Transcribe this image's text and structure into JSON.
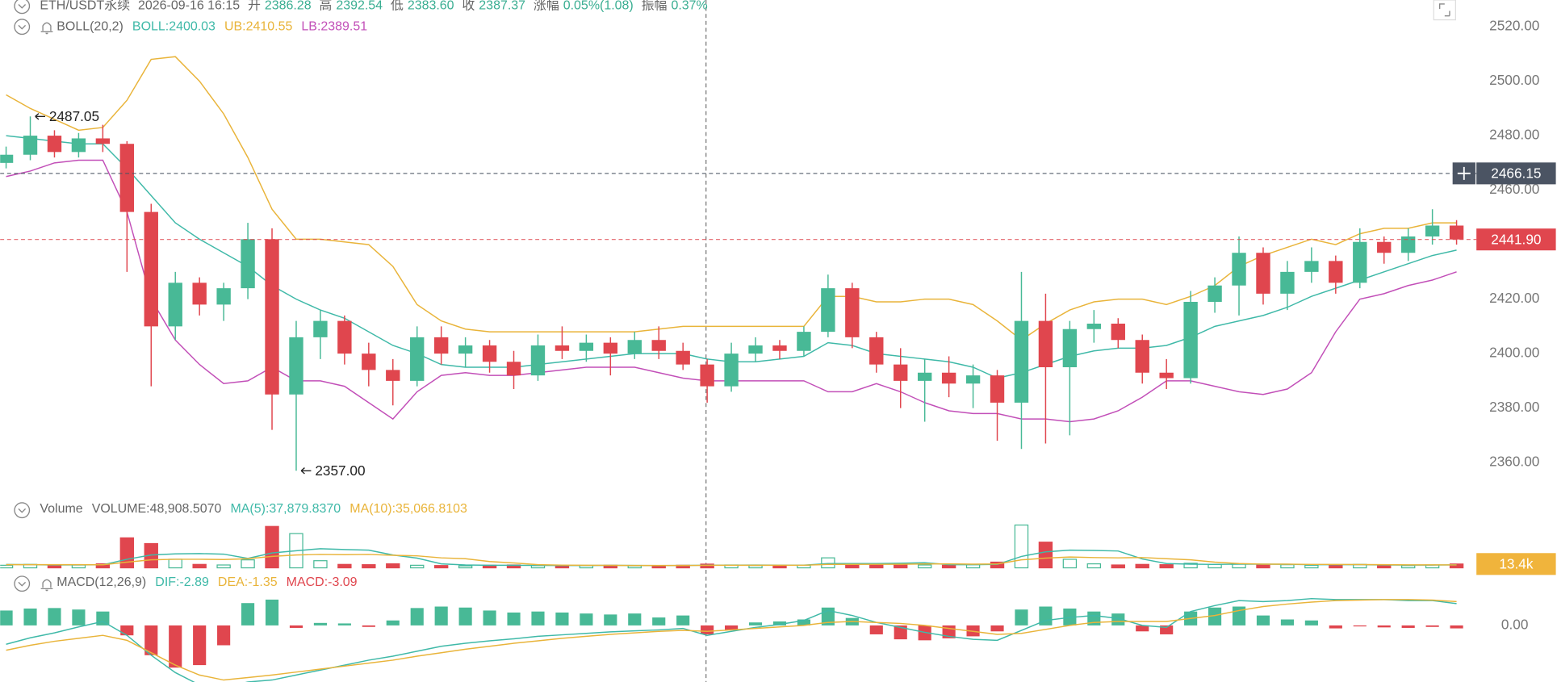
{
  "chart_data": [
    {
      "type": "candlestick",
      "header": {
        "symbol": "ETH/USDT永续",
        "time": "2026-09-16 16:15",
        "fields": [
          {
            "label": "开",
            "value": 2386.28
          },
          {
            "label": "高",
            "value": 2392.54
          },
          {
            "label": "低",
            "value": {
              "value": 2383.6,
              "label": "2383.60"
            }
          },
          {
            "label": "收",
            "value": 2387.37
          },
          {
            "label": "涨幅",
            "value": "0.05%(1.08)"
          },
          {
            "label": "振幅",
            "value": "0.37%"
          }
        ]
      },
      "title": "BOLL(20,2)",
      "up_color": "#48b996",
      "down_color": "#e0464e",
      "open": [
        2470,
        2473,
        2480,
        2474,
        2479,
        2477,
        2452,
        2410,
        2426,
        2418,
        2424,
        2442,
        2385,
        2406,
        2412,
        2400,
        2394,
        2390,
        2406,
        2400,
        2403,
        2397,
        2392,
        2403,
        2401,
        2404,
        2400,
        2405,
        2401,
        2396,
        2388,
        2400,
        2403,
        2401,
        2408,
        2424,
        2406,
        2396,
        2390,
        2393,
        2389,
        2392,
        2382,
        2412,
        2395,
        2409,
        2411,
        2405,
        2393,
        2391,
        2419,
        2425,
        2437,
        2422,
        2430,
        2434,
        2426,
        2441,
        2437,
        2443,
        2447
      ],
      "high": [
        2476,
        2487.05,
        2482,
        2481,
        2484,
        2478,
        2455,
        2430,
        2428,
        2426,
        2448,
        2446,
        2412,
        2416,
        2414,
        2404,
        2398,
        2410,
        2410,
        2406,
        2405,
        2401,
        2407,
        2410,
        2407,
        2406,
        2408,
        2410,
        2404,
        2398,
        2404,
        2406,
        2405,
        2410,
        2429,
        2426,
        2408,
        2402,
        2398,
        2399,
        2396,
        2394,
        2430,
        2422,
        2412,
        2416,
        2413,
        2407,
        2398,
        2423,
        2428,
        2443,
        2439,
        2434,
        2439,
        2436,
        2446,
        2443,
        2446,
        2453,
        2449
      ],
      "low": [
        2468,
        2471,
        2472,
        2472,
        2474,
        2430,
        2388,
        2405,
        2414,
        2412,
        2420,
        2372,
        2357,
        2398,
        2396,
        2388,
        2381,
        2388,
        2396,
        2395,
        2393,
        2387,
        2390,
        2398,
        2397,
        2392,
        2398,
        2398,
        2394,
        2382,
        2386,
        2397,
        2398,
        2399,
        2406,
        2402,
        2393,
        2380,
        2375,
        2384,
        2380,
        2368,
        2365,
        2367,
        2370,
        2404,
        2402,
        2389,
        2387,
        2389,
        2415,
        2414,
        2418,
        2416,
        2426,
        2422,
        2424,
        2433,
        2434,
        2440,
        2440
      ],
      "close": [
        2473,
        2480,
        2474,
        2479,
        2477,
        2452,
        2410,
        2426,
        2418,
        2424,
        2442,
        2385,
        2406,
        2412,
        2400,
        2394,
        2390,
        2406,
        2400,
        2403,
        2397,
        2392,
        2403,
        2401,
        2404,
        2400,
        2405,
        2401,
        2396,
        2388,
        2400,
        2403,
        2401,
        2408,
        2424,
        2406,
        2396,
        2390,
        2393,
        2389,
        2392,
        2382,
        2412,
        2395,
        2409,
        2411,
        2405,
        2393,
        2391,
        2419,
        2425,
        2437,
        2422,
        2430,
        2434,
        2426,
        2441,
        2437,
        2443,
        2447,
        2441.9
      ],
      "series": [
        {
          "name": "BOLL:2400.03",
          "color": "#3fb9a8",
          "values": [
            2480,
            2479,
            2478,
            2477,
            2477,
            2468,
            2458,
            2448,
            2442,
            2437,
            2432,
            2425,
            2420,
            2416,
            2413,
            2408,
            2403,
            2400,
            2396,
            2395,
            2395,
            2395,
            2396,
            2397,
            2398,
            2399,
            2400,
            2400,
            2400,
            2398,
            2397,
            2397,
            2398,
            2399,
            2404,
            2403,
            2400,
            2399,
            2398,
            2397,
            2395,
            2391,
            2393,
            2396,
            2399,
            2401,
            2402,
            2402,
            2403,
            2406,
            2410,
            2412,
            2414,
            2417,
            2421,
            2424,
            2427,
            2430,
            2433,
            2436,
            2438
          ]
        },
        {
          "name": "UB:2410.55",
          "color": "#e9b43a",
          "values": [
            2495,
            2490,
            2486,
            2482,
            2483,
            2493,
            2508,
            2509,
            2500,
            2488,
            2472,
            2453,
            2442,
            2442,
            2441,
            2440,
            2432,
            2418,
            2412,
            2409,
            2408,
            2408,
            2408,
            2408,
            2408,
            2408,
            2408,
            2409,
            2410,
            2410,
            2410,
            2410,
            2410,
            2410,
            2421,
            2421,
            2419,
            2419,
            2420,
            2420,
            2418,
            2412,
            2405,
            2411,
            2416,
            2419,
            2420,
            2420,
            2418,
            2421,
            2425,
            2432,
            2436,
            2439,
            2442,
            2440,
            2444,
            2446,
            2446,
            2448,
            2448
          ]
        },
        {
          "name": "LB:2389.51",
          "color": "#c24fb8",
          "values": [
            2465,
            2467,
            2470,
            2471,
            2471,
            2452,
            2420,
            2405,
            2396,
            2389,
            2390,
            2395,
            2390,
            2390,
            2388,
            2382,
            2376,
            2386,
            2392,
            2393,
            2392,
            2392,
            2393,
            2394,
            2395,
            2395,
            2395,
            2393,
            2391,
            2390,
            2390,
            2390,
            2390,
            2390,
            2386,
            2386,
            2389,
            2386,
            2382,
            2379,
            2378,
            2378,
            2376,
            2376,
            2375,
            2376,
            2379,
            2384,
            2390,
            2390,
            2388,
            2386,
            2385,
            2387,
            2393,
            2408,
            2420,
            2422,
            2425,
            2427,
            2430
          ]
        }
      ],
      "ylim": [
        2347.6,
        2529.8
      ],
      "yticks": [
        {
          "value": 2360,
          "label": "2360.00"
        },
        {
          "value": 2380,
          "label": "2380.00"
        },
        {
          "value": 2400,
          "label": "2400.00"
        },
        {
          "value": 2420,
          "label": "2420.00"
        },
        {
          "value": 2440,
          "label": "2440.00"
        },
        {
          "value": 2460,
          "label": "2460.00"
        },
        {
          "value": 2480,
          "label": "2480.00"
        },
        {
          "value": 2500,
          "label": "2500.00"
        },
        {
          "value": 2520,
          "label": "2520.00"
        }
      ],
      "annotations": [
        {
          "value": 2487.05,
          "label": "2487.05"
        },
        {
          "value": 2357,
          "label": "2357.00"
        }
      ],
      "tags": [
        {
          "value": 2466.15,
          "label": "2466.15",
          "color": "#4b5463",
          "crosshair": true
        },
        {
          "value": 2441.9,
          "label": "2441.90",
          "color": "#e0464e"
        }
      ]
    },
    {
      "type": "bar",
      "title": "Volume",
      "series": [
        {
          "name": "VOLUME:48,908.5070",
          "color": "#666666",
          "kind": "bar",
          "values": [
            9000,
            12000,
            8000,
            10000,
            14000,
            105000,
            85000,
            30000,
            12000,
            10000,
            28000,
            145000,
            120000,
            25000,
            12000,
            11000,
            14000,
            9000,
            8000,
            7000,
            9000,
            10000,
            8000,
            7000,
            8000,
            9000,
            7000,
            8000,
            9000,
            13000,
            10000,
            8000,
            7000,
            9000,
            35000,
            14000,
            11000,
            12000,
            10000,
            9000,
            11000,
            20000,
            150000,
            90000,
            30000,
            14000,
            10000,
            12000,
            11000,
            16000,
            12000,
            14000,
            10000,
            11000,
            9000,
            10000,
            12000,
            9000,
            8000,
            10000,
            13400
          ]
        },
        {
          "name": "MA(5):37,879.8370",
          "color": "#3fb9a8",
          "kind": "line",
          "values": [
            12000,
            11000,
            10000,
            10500,
            10600,
            30000,
            45000,
            49000,
            50000,
            48000,
            33000,
            52000,
            60000,
            67000,
            64000,
            62000,
            45000,
            34000,
            14000,
            10000,
            9000,
            9000,
            8500,
            8200,
            8400,
            8600,
            8200,
            7800,
            8200,
            9200,
            9400,
            9600,
            9400,
            9400,
            15000,
            15000,
            15000,
            16000,
            18000,
            11000,
            11000,
            12000,
            40000,
            56000,
            62000,
            61000,
            59000,
            31000,
            15000,
            13000,
            12000,
            13000,
            13000,
            12500,
            11000,
            11000,
            11000,
            10000,
            9600,
            9800,
            10500
          ]
        },
        {
          "name": "MA(10):35,066.8103",
          "color": "#e9b43a",
          "kind": "line",
          "values": [
            11000,
            11000,
            11000,
            11000,
            10800,
            20000,
            28000,
            30000,
            30000,
            29000,
            32000,
            40000,
            45000,
            47000,
            46000,
            47000,
            44000,
            42000,
            35000,
            32000,
            22000,
            17000,
            11000,
            9500,
            9000,
            8800,
            8400,
            8200,
            8300,
            8800,
            9000,
            9000,
            9000,
            9200,
            12000,
            12200,
            12300,
            12500,
            13500,
            14000,
            13000,
            13500,
            28000,
            34000,
            38000,
            36000,
            35000,
            36000,
            32000,
            28000,
            20000,
            15000,
            13000,
            12800,
            12000,
            12000,
            11500,
            11000,
            10500,
            10300,
            10200
          ]
        }
      ],
      "ylim": [
        0,
        160000
      ],
      "tags": [
        {
          "value": 13400,
          "label": "13.4k",
          "color": "#f0b43c"
        }
      ]
    },
    {
      "type": "macd",
      "title": "MACD(12,26,9)",
      "up_color": "#48b996",
      "down_color": "#e0464e",
      "series": [
        {
          "name": "DIF:-2.89",
          "color": "#3fb9a8",
          "kind": "line",
          "values": [
            -3.8,
            -2.5,
            -1.5,
            -0.3,
            0.8,
            -2,
            -6,
            -9.5,
            -12,
            -12.5,
            -11.4,
            -11,
            -10,
            -9,
            -8,
            -7,
            -6.2,
            -5.2,
            -4.2,
            -3.6,
            -3.1,
            -2.7,
            -2.2,
            -1.9,
            -1.6,
            -1.3,
            -1.1,
            -0.9,
            -0.6,
            -2,
            -1.2,
            -0.4,
            0.2,
            1,
            3,
            2,
            0.6,
            -0.4,
            -1.4,
            -2.2,
            -2.8,
            -3,
            -1,
            1,
            1.6,
            2,
            1.4,
            0,
            -0.4,
            2.8,
            4,
            5,
            4.8,
            5,
            5.4,
            5.2,
            5.2,
            5.2,
            5,
            5,
            4.4
          ]
        },
        {
          "name": "DEA:-1.35",
          "color": "#e9b43a",
          "kind": "line",
          "values": [
            -5,
            -4,
            -3.2,
            -2.6,
            -2,
            -3,
            -5.5,
            -8,
            -10,
            -11,
            -10.5,
            -10,
            -9.4,
            -8.8,
            -8.2,
            -7.6,
            -7,
            -6.2,
            -5.5,
            -4.8,
            -4.2,
            -3.6,
            -3.1,
            -2.6,
            -2.2,
            -1.8,
            -1.5,
            -1.2,
            -1,
            -1.2,
            -0.9,
            -0.6,
            -0.3,
            0,
            0.6,
            0.8,
            0.6,
            0.4,
            0,
            -0.6,
            -1.2,
            -1.8,
            -1.6,
            -0.8,
            0,
            0.6,
            0.8,
            0.8,
            0.8,
            1.4,
            2,
            3,
            3.8,
            4.3,
            4.7,
            5,
            5.1,
            5.2,
            5.2,
            5.1,
            4.8
          ]
        },
        {
          "name": "MACD:-3.09",
          "color": "#e0464e",
          "kind": "bar",
          "values": [
            3,
            3.4,
            3.5,
            3.2,
            2.8,
            -2,
            -6,
            -8.5,
            -8,
            -4,
            4.5,
            5.2,
            -0.5,
            0.5,
            0.4,
            -0.3,
            1,
            3.5,
            3.8,
            3.6,
            3,
            2.6,
            2.8,
            2.6,
            2.4,
            2.2,
            2.4,
            1.6,
            2,
            -1.8,
            -1,
            0.6,
            0.8,
            1.2,
            3.6,
            1.5,
            -1.8,
            -2.8,
            -3,
            -2.6,
            -2.2,
            -1.2,
            3.2,
            3.8,
            3.4,
            2.8,
            2.4,
            -1.2,
            -1.8,
            2.8,
            3.6,
            3.8,
            2,
            1.2,
            1,
            -0.6,
            -0.2,
            -0.4,
            -0.5,
            -0.3,
            -0.6
          ]
        }
      ],
      "ylim": [
        -11.4,
        10.4
      ],
      "yticks": [
        {
          "value": 0,
          "label": "0.00"
        }
      ]
    }
  ]
}
